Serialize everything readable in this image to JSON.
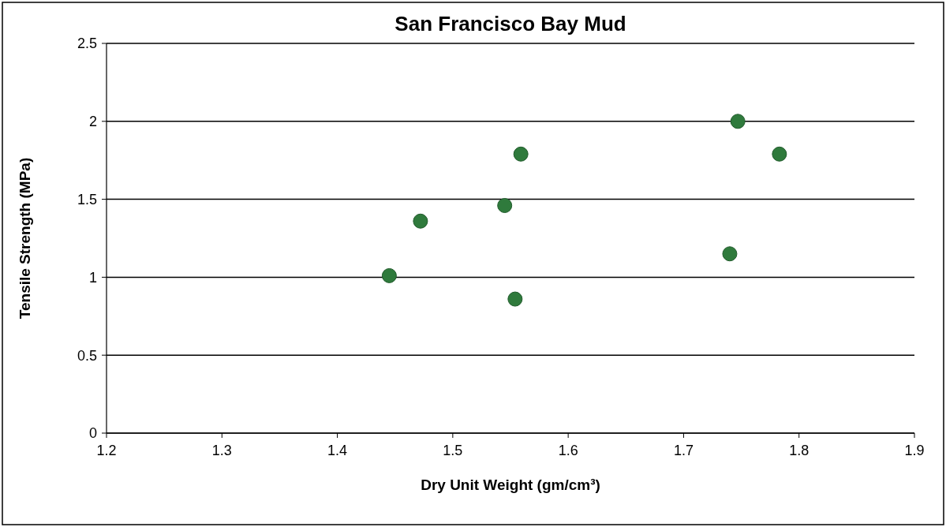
{
  "chart_data": {
    "type": "scatter",
    "title": "San Francisco Bay Mud",
    "xlabel": "Dry Unit Weight (gm/cm³)",
    "ylabel": "Tensile Strength (MPa)",
    "x": [
      1.445,
      1.472,
      1.545,
      1.554,
      1.559,
      1.74,
      1.747,
      1.783
    ],
    "series": [
      {
        "color": "#2f7a3c",
        "values": [
          1.01,
          1.36,
          1.46,
          0.86,
          1.79,
          1.15,
          2.0,
          1.79
        ]
      }
    ],
    "xlim": [
      1.2,
      1.9
    ],
    "xticks": [
      {
        "value": 1.2,
        "label": "1.2"
      },
      {
        "value": 1.3,
        "label": "1.3"
      },
      {
        "value": 1.4,
        "label": "1.4"
      },
      {
        "value": 1.5,
        "label": "1.5"
      },
      {
        "value": 1.6,
        "label": "1.6"
      },
      {
        "value": 1.7,
        "label": "1.7"
      },
      {
        "value": 1.8,
        "label": "1.8"
      },
      {
        "value": 1.9,
        "label": "1.9"
      }
    ],
    "ylim": [
      0,
      2.5
    ],
    "yticks": [
      0,
      {
        "value": 0.5,
        "label": "0.5"
      },
      1,
      {
        "value": 1.5,
        "label": "1.5"
      },
      2,
      {
        "value": 2.5,
        "label": "2.5"
      }
    ],
    "grid": "y",
    "marker": "circle"
  }
}
